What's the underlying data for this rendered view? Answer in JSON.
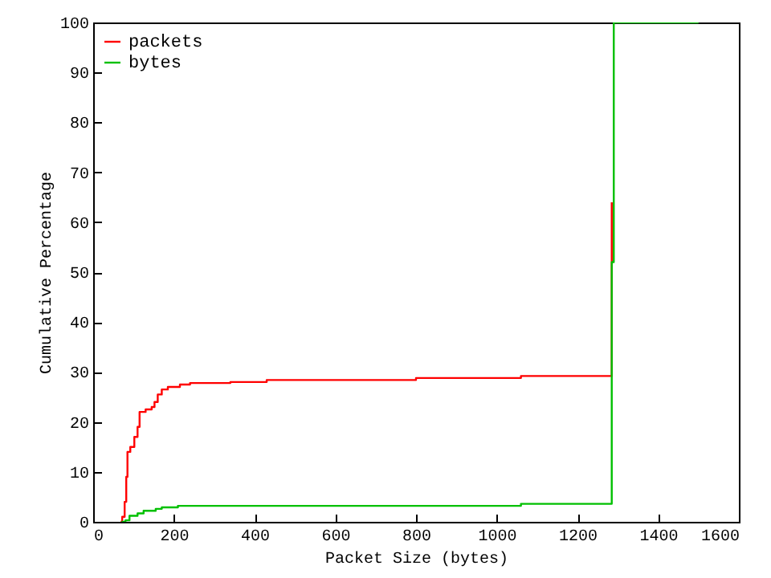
{
  "chart_data": {
    "type": "step",
    "xlabel": "Packet Size (bytes)",
    "ylabel": "Cumulative Percentage",
    "xlim": [
      0,
      1600
    ],
    "xticks": [
      0,
      200,
      400,
      600,
      800,
      1000,
      1200,
      1400,
      1600
    ],
    "ylim": [
      0,
      100
    ],
    "yticks": [
      0,
      10,
      20,
      30,
      40,
      50,
      60,
      70,
      80,
      90,
      100
    ],
    "grid": false,
    "legend": "top left",
    "series": [
      {
        "name": "packets",
        "color": "#ff0000",
        "x": [
          68,
          72,
          78,
          82,
          85,
          92,
          102,
          107,
          110,
          115,
          130,
          145,
          152,
          160,
          170,
          185,
          215,
          240,
          340,
          430,
          800,
          1060,
          1285
        ],
        "values": [
          0,
          1,
          4,
          9,
          14,
          15,
          17,
          17,
          19,
          22,
          22.5,
          23,
          24,
          25.5,
          26.5,
          27,
          27.5,
          27.8,
          28,
          28.4,
          28.8,
          29.2,
          64
        ]
      },
      {
        "name": "bytes",
        "color": "#00c000",
        "x": [
          70,
          80,
          90,
          110,
          125,
          155,
          170,
          210,
          1060,
          1285,
          1290,
          1500
        ],
        "values": [
          0,
          0.3,
          1.2,
          1.7,
          2.2,
          2.6,
          2.9,
          3.2,
          3.6,
          52,
          100,
          100
        ]
      }
    ]
  }
}
